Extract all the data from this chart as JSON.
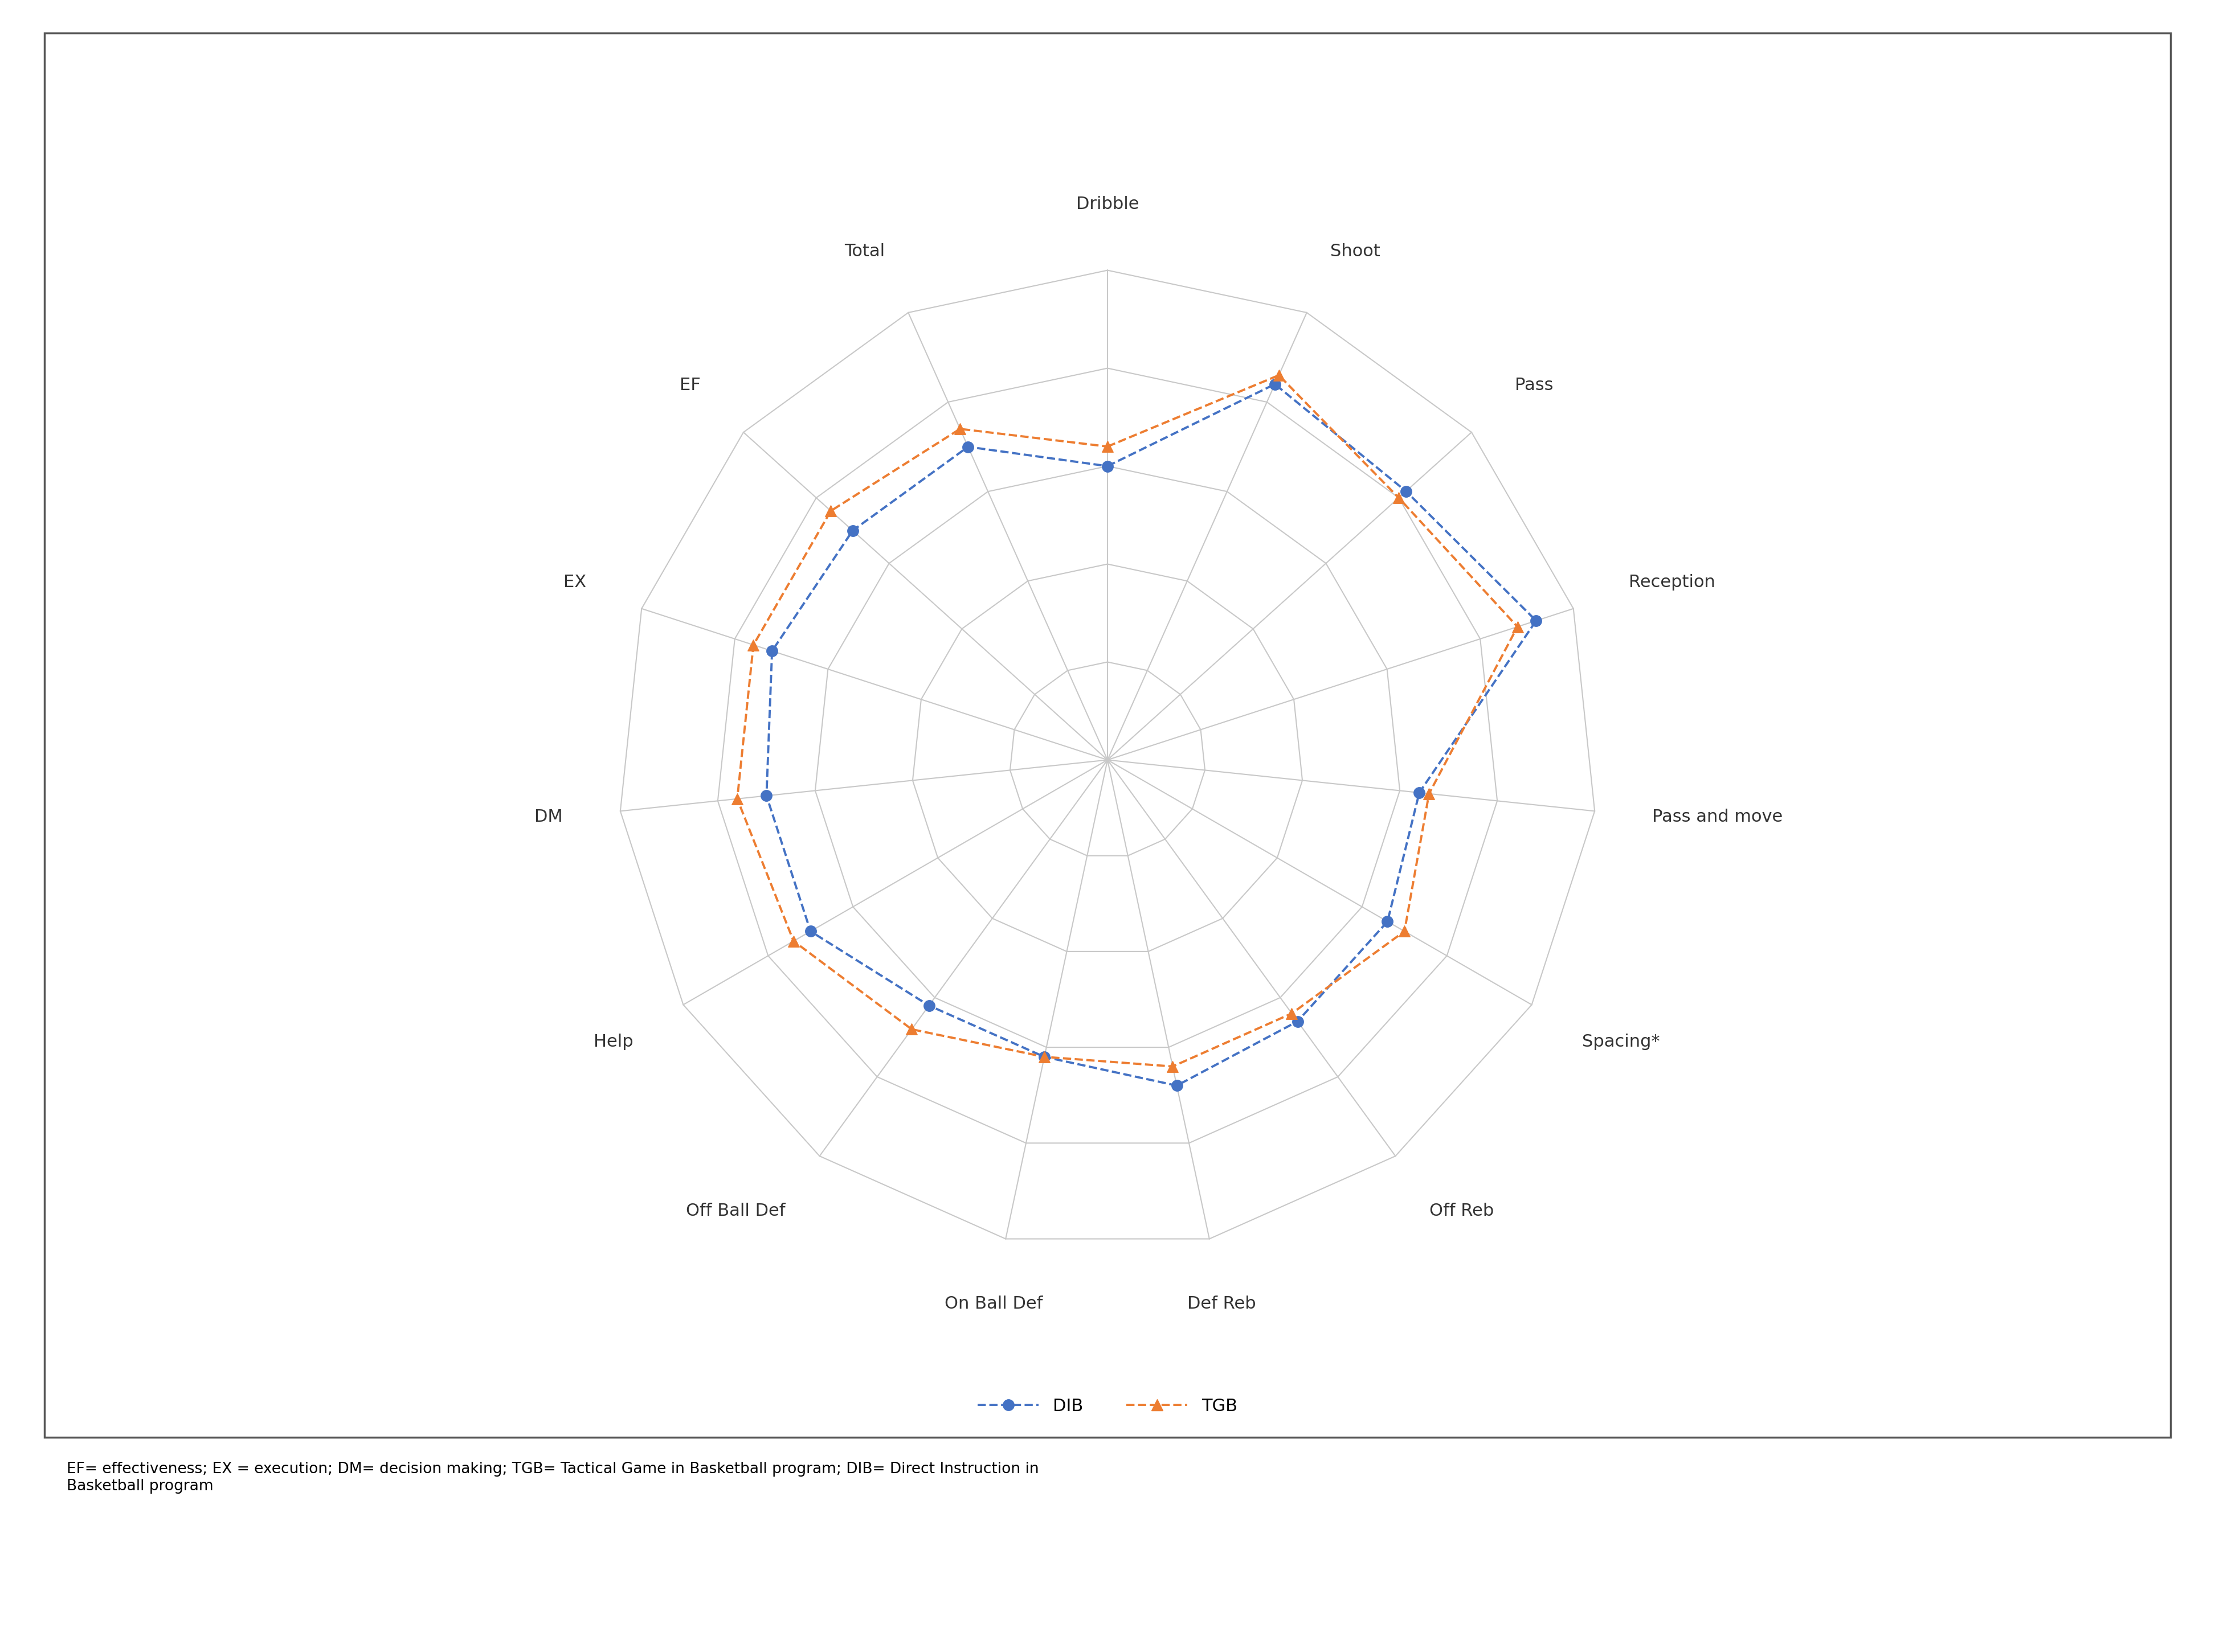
{
  "categories": [
    "Dribble",
    "Shoot",
    "Pass",
    "Reception",
    "Pass and move",
    "Spacing*",
    "Off Reb",
    "Def Reb",
    "On Ball Def",
    "Off Ball Def",
    "Help",
    "DM",
    "EX",
    "EF",
    "Total"
  ],
  "DIB": [
    3.0,
    4.2,
    4.1,
    4.6,
    3.2,
    3.3,
    3.3,
    3.4,
    3.1,
    3.1,
    3.5,
    3.5,
    3.6,
    3.5,
    3.5
  ],
  "TGB": [
    3.2,
    4.3,
    4.0,
    4.4,
    3.3,
    3.5,
    3.2,
    3.2,
    3.1,
    3.4,
    3.7,
    3.8,
    3.8,
    3.8,
    3.7
  ],
  "DIB_color": "#4472C4",
  "TGB_color": "#ED7D31",
  "grid_color": "#C8C8C8",
  "background_color": "#FFFFFF",
  "rmax": 5,
  "num_rings": 5,
  "caption": "EF= effectiveness; EX = execution; DM= decision making; TGB= Tactical Game in Basketball program; DIB= Direct Instruction in\nBasketball program",
  "label_fontsize": 22,
  "legend_fontsize": 22,
  "caption_fontsize": 19,
  "marker_size": 14,
  "line_width": 2.8
}
